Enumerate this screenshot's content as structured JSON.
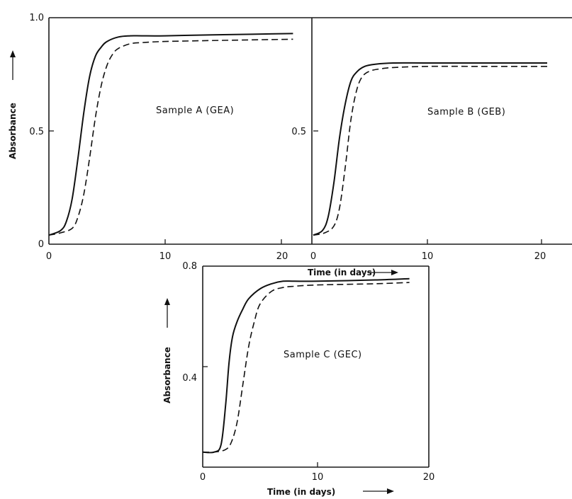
{
  "chart_data": [
    {
      "type": "line",
      "title": "",
      "annotation": "Sample A (GEA)",
      "xlabel": "",
      "ylabel": "Absorbance",
      "xlim": [
        0,
        22
      ],
      "ylim": [
        0,
        1.0
      ],
      "xticks": [
        "0",
        "10",
        "20"
      ],
      "yticks": [
        "0",
        "0.5",
        "1.0"
      ],
      "grid": false,
      "series": [
        {
          "style": "solid",
          "x": [
            0,
            1,
            1.5,
            2,
            2.5,
            3,
            3.5,
            4,
            4.5,
            5,
            6,
            7,
            8,
            10,
            15,
            21
          ],
          "y": [
            0.04,
            0.06,
            0.1,
            0.2,
            0.38,
            0.58,
            0.74,
            0.83,
            0.87,
            0.895,
            0.915,
            0.92,
            0.92,
            0.92,
            0.925,
            0.93
          ]
        },
        {
          "style": "dashed",
          "x": [
            0,
            1,
            2,
            2.5,
            3,
            3.5,
            4,
            4.5,
            5,
            5.5,
            6,
            7,
            8,
            10,
            15,
            21
          ],
          "y": [
            0.04,
            0.05,
            0.07,
            0.12,
            0.22,
            0.38,
            0.56,
            0.7,
            0.79,
            0.84,
            0.865,
            0.885,
            0.89,
            0.895,
            0.9,
            0.905
          ]
        }
      ]
    },
    {
      "type": "line",
      "title": "",
      "annotation": "Sample B (GEB)",
      "xlabel": "Time (in days)",
      "ylabel": "",
      "xlim": [
        0,
        22
      ],
      "ylim": [
        0,
        1.0
      ],
      "xticks": [
        "0",
        "10",
        "20"
      ],
      "yticks": [
        "0.5"
      ],
      "grid": false,
      "series": [
        {
          "style": "solid",
          "x": [
            0,
            0.8,
            1.3,
            1.8,
            2.3,
            2.8,
            3.3,
            3.8,
            4.5,
            5.5,
            7,
            10,
            15,
            20.5
          ],
          "y": [
            0.04,
            0.06,
            0.12,
            0.27,
            0.47,
            0.62,
            0.72,
            0.76,
            0.785,
            0.795,
            0.8,
            0.8,
            0.8,
            0.8
          ]
        },
        {
          "style": "dashed",
          "x": [
            0,
            1,
            1.8,
            2.3,
            2.8,
            3.3,
            3.8,
            4.3,
            5,
            6,
            7,
            10,
            15,
            20.5
          ],
          "y": [
            0.04,
            0.05,
            0.08,
            0.16,
            0.34,
            0.55,
            0.68,
            0.74,
            0.765,
            0.775,
            0.78,
            0.785,
            0.785,
            0.785
          ]
        }
      ]
    },
    {
      "type": "line",
      "title": "",
      "annotation": "Sample C (GEC)",
      "xlabel": "Time (in days)",
      "ylabel": "Absorbance",
      "xlim": [
        0,
        20
      ],
      "ylim": [
        0,
        0.8
      ],
      "xticks": [
        "0",
        "10",
        "20"
      ],
      "yticks": [
        "0.4",
        "0.8"
      ],
      "grid": false,
      "series": [
        {
          "style": "solid",
          "x": [
            0,
            1,
            1.6,
            2,
            2.3,
            2.6,
            3,
            3.5,
            4,
            5,
            6,
            7,
            8,
            10,
            15,
            18
          ],
          "y": [
            0.06,
            0.06,
            0.09,
            0.25,
            0.42,
            0.52,
            0.58,
            0.63,
            0.67,
            0.71,
            0.73,
            0.74,
            0.74,
            0.74,
            0.745,
            0.75
          ]
        },
        {
          "style": "dashed",
          "x": [
            0,
            1,
            2,
            2.5,
            3,
            3.5,
            4,
            4.5,
            5,
            6,
            7,
            8,
            10,
            15,
            18
          ],
          "y": [
            0.06,
            0.06,
            0.07,
            0.1,
            0.18,
            0.33,
            0.48,
            0.58,
            0.65,
            0.7,
            0.715,
            0.72,
            0.725,
            0.73,
            0.735
          ]
        }
      ]
    }
  ]
}
